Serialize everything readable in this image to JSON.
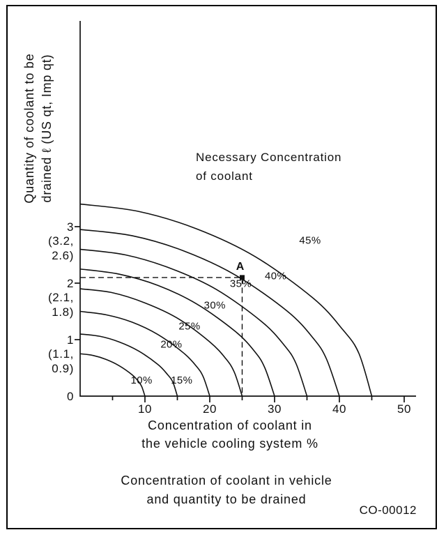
{
  "figure": {
    "annotation_line1": "Necessary Concentration",
    "annotation_line2": "of coolant",
    "caption_line1": "Concentration of coolant in vehicle",
    "caption_line2": "and quantity to be drained",
    "code": "CO-00012"
  },
  "y_axis": {
    "title_line1": "Quantity of coolant to be",
    "title_line2": "drained ℓ (US qt, Imp qt)",
    "ticks": [
      {
        "value": 3,
        "label": "3",
        "paren": [
          "(3.2,",
          "2.6)"
        ]
      },
      {
        "value": 2,
        "label": "2",
        "paren": [
          "(2.1,",
          "1.8)"
        ]
      },
      {
        "value": 1,
        "label": "1",
        "paren": [
          "(1.1,",
          "0.9)"
        ]
      },
      {
        "value": 0,
        "label": "0"
      }
    ]
  },
  "x_axis": {
    "title_line1": "Concentration of coolant in",
    "title_line2": "the vehicle cooling system %",
    "ticks": [
      10,
      20,
      30,
      40,
      50
    ],
    "minor_ticks": [
      5,
      15,
      25,
      35,
      45
    ]
  },
  "chart_data": {
    "type": "line",
    "title": "Concentration of coolant in vehicle and quantity to be drained",
    "xlabel": "Concentration of coolant in the vehicle cooling system %",
    "ylabel": "Quantity of coolant to be drained ℓ (US qt, Imp qt)",
    "xlim": [
      0,
      50
    ],
    "ylim": [
      0,
      3.7
    ],
    "grid": false,
    "legend": "inline curve labels",
    "annotation": "Necessary Concentration of coolant",
    "marked_point": {
      "label": "A",
      "x": 25,
      "y": 2.1,
      "guides": "dashed lines to both axes"
    },
    "series": [
      {
        "name": "10%",
        "label_x": 7.8,
        "label_y": 0.22,
        "points": [
          [
            0,
            0.75
          ],
          [
            2,
            0.72
          ],
          [
            4,
            0.65
          ],
          [
            6,
            0.54
          ],
          [
            8,
            0.38
          ],
          [
            9,
            0.26
          ],
          [
            9.5,
            0.17
          ],
          [
            10,
            0
          ]
        ]
      },
      {
        "name": "15%",
        "label_x": 14.0,
        "label_y": 0.22,
        "points": [
          [
            0,
            1.1
          ],
          [
            3,
            1.06
          ],
          [
            6,
            0.96
          ],
          [
            9,
            0.8
          ],
          [
            12,
            0.56
          ],
          [
            13.5,
            0.38
          ],
          [
            14.3,
            0.25
          ],
          [
            15,
            0
          ]
        ]
      },
      {
        "name": "20%",
        "label_x": 12.4,
        "label_y": 0.86,
        "points": [
          [
            0,
            1.5
          ],
          [
            4,
            1.44
          ],
          [
            8,
            1.31
          ],
          [
            12,
            1.09
          ],
          [
            16,
            0.76
          ],
          [
            18,
            0.52
          ],
          [
            19,
            0.34
          ],
          [
            20,
            0
          ]
        ]
      },
      {
        "name": "25%",
        "label_x": 15.2,
        "label_y": 1.18,
        "points": [
          [
            0,
            1.9
          ],
          [
            5,
            1.83
          ],
          [
            10,
            1.65
          ],
          [
            15,
            1.38
          ],
          [
            20,
            0.96
          ],
          [
            22.5,
            0.66
          ],
          [
            23.8,
            0.42
          ],
          [
            25,
            0
          ]
        ]
      },
      {
        "name": "30%",
        "label_x": 19.1,
        "label_y": 1.55,
        "points": [
          [
            0,
            2.25
          ],
          [
            6,
            2.16
          ],
          [
            12,
            1.96
          ],
          [
            18,
            1.63
          ],
          [
            24,
            1.14
          ],
          [
            27,
            0.78
          ],
          [
            28.5,
            0.5
          ],
          [
            30,
            0
          ]
        ]
      },
      {
        "name": "35%",
        "label_x": 23.1,
        "label_y": 1.93,
        "points": [
          [
            0,
            2.6
          ],
          [
            7,
            2.5
          ],
          [
            14,
            2.26
          ],
          [
            21,
            1.89
          ],
          [
            28,
            1.32
          ],
          [
            31.5,
            0.9
          ],
          [
            33.3,
            0.58
          ],
          [
            35,
            0
          ]
        ]
      },
      {
        "name": "40%",
        "label_x": 28.5,
        "label_y": 2.07,
        "points": [
          [
            0,
            2.95
          ],
          [
            8,
            2.84
          ],
          [
            16,
            2.57
          ],
          [
            24,
            2.14
          ],
          [
            32,
            1.5
          ],
          [
            36,
            1.02
          ],
          [
            38,
            0.66
          ],
          [
            40,
            0
          ]
        ]
      },
      {
        "name": "45%",
        "label_x": 33.8,
        "label_y": 2.7,
        "points": [
          [
            0,
            3.4
          ],
          [
            9,
            3.27
          ],
          [
            18,
            2.96
          ],
          [
            27,
            2.47
          ],
          [
            36,
            1.73
          ],
          [
            40.5,
            1.18
          ],
          [
            43,
            0.76
          ],
          [
            45,
            0
          ]
        ]
      }
    ]
  }
}
